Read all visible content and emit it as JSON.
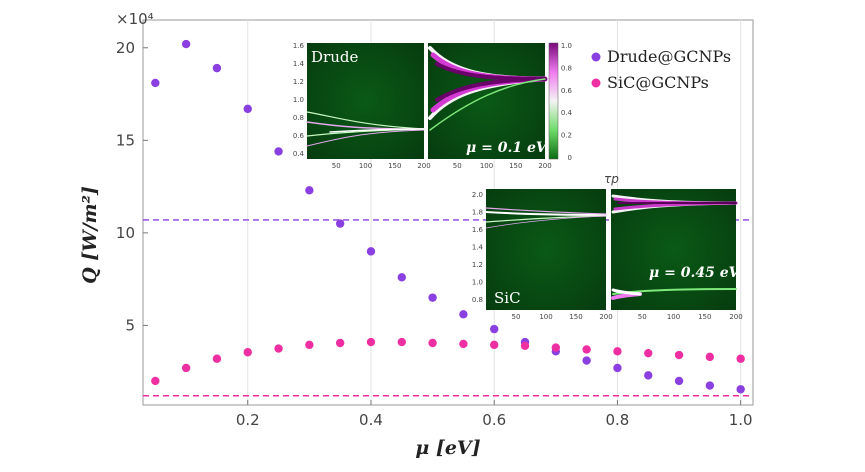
{
  "chart_data": {
    "type": "scatter",
    "title": "",
    "xlabel": "μ [eV]",
    "ylabel": "Q [W/m²]",
    "y_multiplier_label": "×10⁴",
    "xlim": [
      0.03,
      1.02
    ],
    "ylim": [
      0.7,
      21.5
    ],
    "x_ticks": [
      0.2,
      0.4,
      0.6,
      0.8,
      1.0
    ],
    "x_tick_labels": [
      "0.2",
      "0.4",
      "0.6",
      "0.8",
      "1.0"
    ],
    "y_ticks": [
      5,
      10,
      15,
      20
    ],
    "y_tick_labels": [
      "5",
      "10",
      "15",
      "20"
    ],
    "legend_position": "top-right",
    "series": [
      {
        "name": "Drude@GCNPs",
        "color": "#8a3fe0",
        "x": [
          0.05,
          0.1,
          0.15,
          0.2,
          0.25,
          0.3,
          0.35,
          0.4,
          0.45,
          0.5,
          0.55,
          0.6,
          0.65,
          0.7,
          0.75,
          0.8,
          0.85,
          0.9,
          0.95,
          1.0
        ],
        "y": [
          18.1,
          20.2,
          18.9,
          16.7,
          14.4,
          12.3,
          10.5,
          9.0,
          7.6,
          6.5,
          5.6,
          4.8,
          4.1,
          3.6,
          3.1,
          2.7,
          2.3,
          2.0,
          1.75,
          1.55
        ]
      },
      {
        "name": "SiC@GCNPs",
        "color": "#ee2fa2",
        "x": [
          0.05,
          0.1,
          0.15,
          0.2,
          0.25,
          0.3,
          0.35,
          0.4,
          0.45,
          0.5,
          0.55,
          0.6,
          0.65,
          0.7,
          0.75,
          0.8,
          0.85,
          0.9,
          0.95,
          1.0
        ],
        "y": [
          2.0,
          2.7,
          3.2,
          3.55,
          3.75,
          3.95,
          4.05,
          4.1,
          4.1,
          4.05,
          4.0,
          3.95,
          3.9,
          3.8,
          3.7,
          3.6,
          3.5,
          3.4,
          3.3,
          3.2
        ]
      }
    ],
    "reference_lines": [
      {
        "series": "Drude@GCNPs",
        "y": 10.7,
        "style": "dashed",
        "color": "#8a3fe0"
      },
      {
        "series": "SiC@GCNPs",
        "y": 1.2,
        "style": "dashed",
        "color": "#ee2fa2"
      }
    ],
    "insets": {
      "drude": {
        "label": "Drude",
        "mu_label": "μ = 0.1 eV",
        "y_ticks": [
          "1.6",
          "1.4",
          "1.2",
          "1.0",
          "0.8",
          "0.6",
          "0.4"
        ],
        "x_ticks_left": [
          "50",
          "100",
          "150",
          "200"
        ],
        "x_ticks_right": [
          "50",
          "100",
          "150",
          "200"
        ],
        "colorbar_ticks": [
          "1.0",
          "0.8",
          "0.6",
          "0.4",
          "0.2",
          "0"
        ]
      },
      "sic": {
        "label": "SiC",
        "mu_label": "μ = 0.45 eV",
        "top_label": "τp",
        "y_ticks": [
          "2.0",
          "1.8",
          "1.6",
          "1.4",
          "1.2",
          "1.0",
          "0.8"
        ],
        "x_ticks_left": [
          "50",
          "100",
          "150",
          "200"
        ],
        "x_ticks_right": [
          "50",
          "100",
          "150",
          "200"
        ]
      }
    }
  }
}
